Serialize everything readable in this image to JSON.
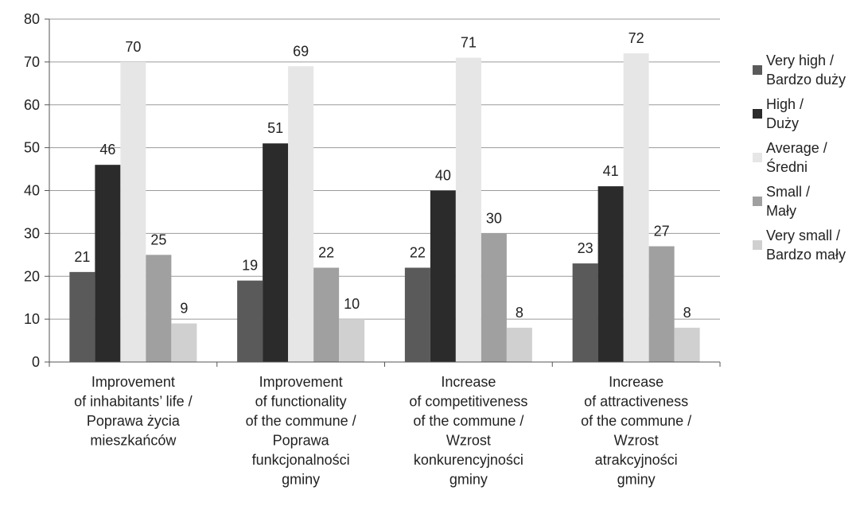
{
  "chart_data": {
    "type": "bar",
    "title": "",
    "xlabel": "",
    "ylabel": "",
    "ylim": [
      0,
      80
    ],
    "yticks": [
      0,
      10,
      20,
      30,
      40,
      50,
      60,
      70,
      80
    ],
    "grid": "horizontal",
    "legend_position": "right",
    "categories": [
      [
        "Improvement",
        "of inhabitants’ life /",
        "Poprawa życia",
        "mieszkańców"
      ],
      [
        "Improvement",
        "of functionality",
        "of the commune /",
        "Poprawa",
        "funkcjonalności",
        "gminy"
      ],
      [
        "Increase",
        "of competitiveness",
        "of the commune /",
        "Wzrost",
        "konkurencyjności",
        "gminy"
      ],
      [
        "Increase",
        "of attractiveness",
        "of the commune /",
        "Wzrost",
        "atrakcyjności",
        "gminy"
      ]
    ],
    "series": [
      {
        "name": [
          "Very high /",
          "Bardzo duży"
        ],
        "color": "#5a5a5a",
        "values": [
          21,
          19,
          22,
          23
        ]
      },
      {
        "name": [
          "High /",
          "Duży"
        ],
        "color": "#2b2b2b",
        "values": [
          46,
          51,
          40,
          41
        ]
      },
      {
        "name": [
          "Average /",
          "Średni"
        ],
        "color": "#e6e6e6",
        "values": [
          70,
          69,
          71,
          72
        ]
      },
      {
        "name": [
          "Small /",
          "Mały"
        ],
        "color": "#a0a0a0",
        "values": [
          25,
          22,
          30,
          27
        ]
      },
      {
        "name": [
          "Very small /",
          "Bardzo mały"
        ],
        "color": "#d0d0d0",
        "values": [
          9,
          10,
          8,
          8
        ]
      }
    ]
  }
}
